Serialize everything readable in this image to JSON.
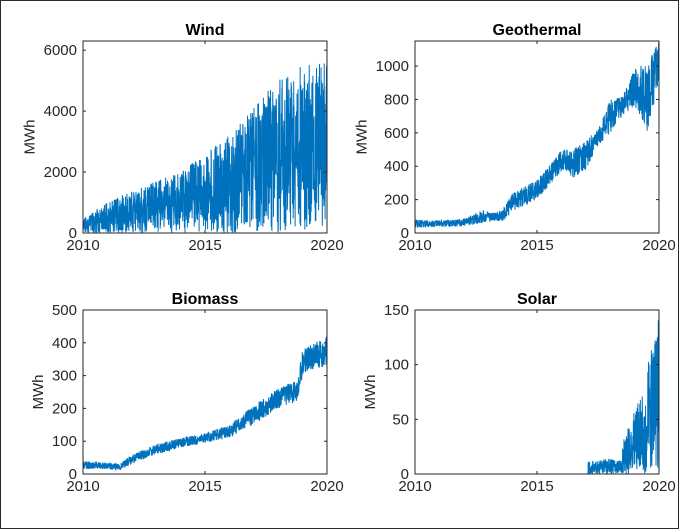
{
  "figure": {
    "line_color": "#0072BD",
    "axis_color": "#262626",
    "background": "#ffffff"
  },
  "chart_data": [
    {
      "type": "line",
      "title": "Wind",
      "xlabel": "",
      "ylabel": "MWh",
      "xlim": [
        2010,
        2020
      ],
      "ylim": [
        0,
        6300
      ],
      "xticks": [
        2010,
        2015,
        2020
      ],
      "yticks": [
        0,
        2000,
        4000,
        6000
      ],
      "grid": false,
      "noisy_envelope": true,
      "x": [
        2010,
        2011,
        2012,
        2013,
        2013.6,
        2014,
        2015,
        2016,
        2017,
        2018,
        2019,
        2019.6,
        2020
      ],
      "upper": [
        500,
        1000,
        1400,
        1700,
        1900,
        2000,
        2600,
        3200,
        4200,
        5000,
        5600,
        5700,
        6200
      ],
      "typical": [
        200,
        400,
        600,
        700,
        800,
        1000,
        1200,
        1500,
        1900,
        2200,
        2600,
        2800,
        3000
      ],
      "lower": [
        0,
        0,
        0,
        0,
        0,
        0,
        0,
        0,
        0,
        0,
        0,
        0,
        0
      ]
    },
    {
      "type": "line",
      "title": "Geothermal",
      "xlabel": "",
      "ylabel": "MWh",
      "xlim": [
        2010,
        2020
      ],
      "ylim": [
        0,
        1150
      ],
      "xticks": [
        2010,
        2015,
        2020
      ],
      "yticks": [
        0,
        200,
        400,
        600,
        800,
        1000
      ],
      "grid": false,
      "noisy_envelope": true,
      "x": [
        2010,
        2011,
        2012,
        2012.8,
        2013.2,
        2013.6,
        2014,
        2015,
        2015.6,
        2016,
        2016.5,
        2017,
        2017.5,
        2018,
        2018.5,
        2019,
        2019.5,
        2020
      ],
      "upper": [
        80,
        75,
        85,
        140,
        120,
        140,
        240,
        320,
        420,
        500,
        500,
        560,
        620,
        800,
        820,
        980,
        1020,
        1150
      ],
      "typical": [
        55,
        55,
        60,
        90,
        95,
        100,
        170,
        260,
        360,
        440,
        420,
        440,
        580,
        680,
        760,
        860,
        800,
        1000
      ],
      "lower": [
        30,
        35,
        40,
        60,
        70,
        70,
        130,
        200,
        300,
        370,
        330,
        380,
        520,
        600,
        700,
        760,
        600,
        900
      ]
    },
    {
      "type": "line",
      "title": "Biomass",
      "xlabel": "",
      "ylabel": "MWh",
      "xlim": [
        2010,
        2020
      ],
      "ylim": [
        0,
        500
      ],
      "xticks": [
        2010,
        2015,
        2020
      ],
      "yticks": [
        0,
        100,
        200,
        300,
        400,
        500
      ],
      "grid": false,
      "noisy_envelope": true,
      "x": [
        2010,
        2011,
        2011.5,
        2012,
        2013,
        2014,
        2015,
        2016,
        2017,
        2018,
        2018.8,
        2019,
        2019.5,
        2020
      ],
      "upper": [
        40,
        35,
        30,
        60,
        90,
        110,
        125,
        150,
        210,
        260,
        290,
        380,
        400,
        420
      ],
      "typical": [
        25,
        25,
        20,
        45,
        75,
        95,
        110,
        130,
        180,
        230,
        260,
        340,
        360,
        370
      ],
      "lower": [
        15,
        15,
        10,
        30,
        60,
        80,
        95,
        110,
        150,
        200,
        220,
        300,
        320,
        330
      ]
    },
    {
      "type": "line",
      "title": "Solar",
      "xlabel": "",
      "ylabel": "MWh",
      "xlim": [
        2010,
        2020
      ],
      "ylim": [
        0,
        150
      ],
      "xticks": [
        2010,
        2015,
        2020
      ],
      "yticks": [
        0,
        50,
        100,
        150
      ],
      "grid": false,
      "noisy_envelope": true,
      "x": [
        2010,
        2017.09,
        2017.1,
        2018,
        2018.5,
        2018.51,
        2019,
        2019.4,
        2019.5,
        2019.51,
        2020
      ],
      "upper": [
        0,
        0,
        12,
        14,
        12,
        30,
        60,
        75,
        78,
        100,
        145
      ],
      "typical": [
        0,
        0,
        6,
        7,
        6,
        15,
        25,
        30,
        35,
        50,
        70
      ],
      "lower": [
        0,
        0,
        0,
        0,
        0,
        0,
        0,
        0,
        0,
        0,
        0
      ]
    }
  ]
}
